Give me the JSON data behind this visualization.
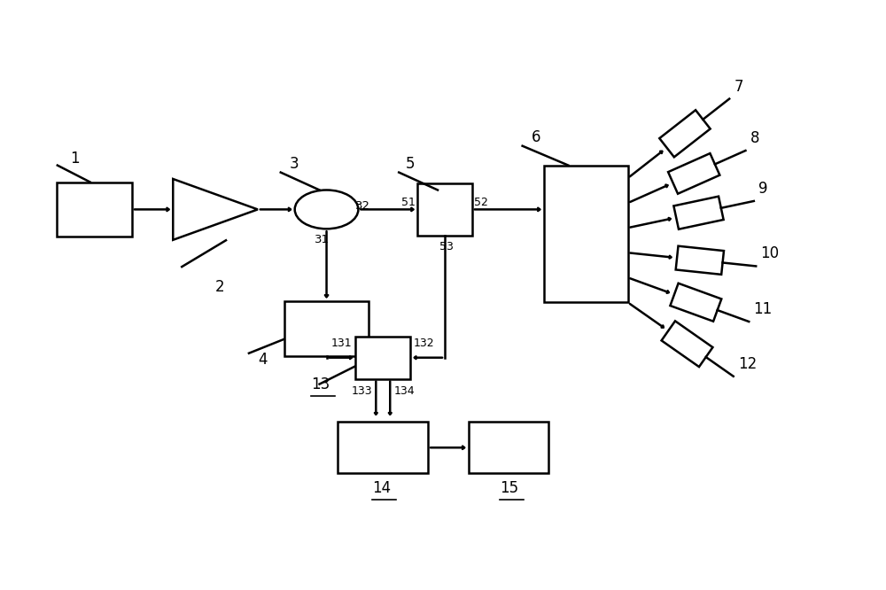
{
  "bg_color": "#ffffff",
  "line_color": "#000000",
  "fig_width": 10.0,
  "fig_height": 6.66,
  "dpi": 100
}
